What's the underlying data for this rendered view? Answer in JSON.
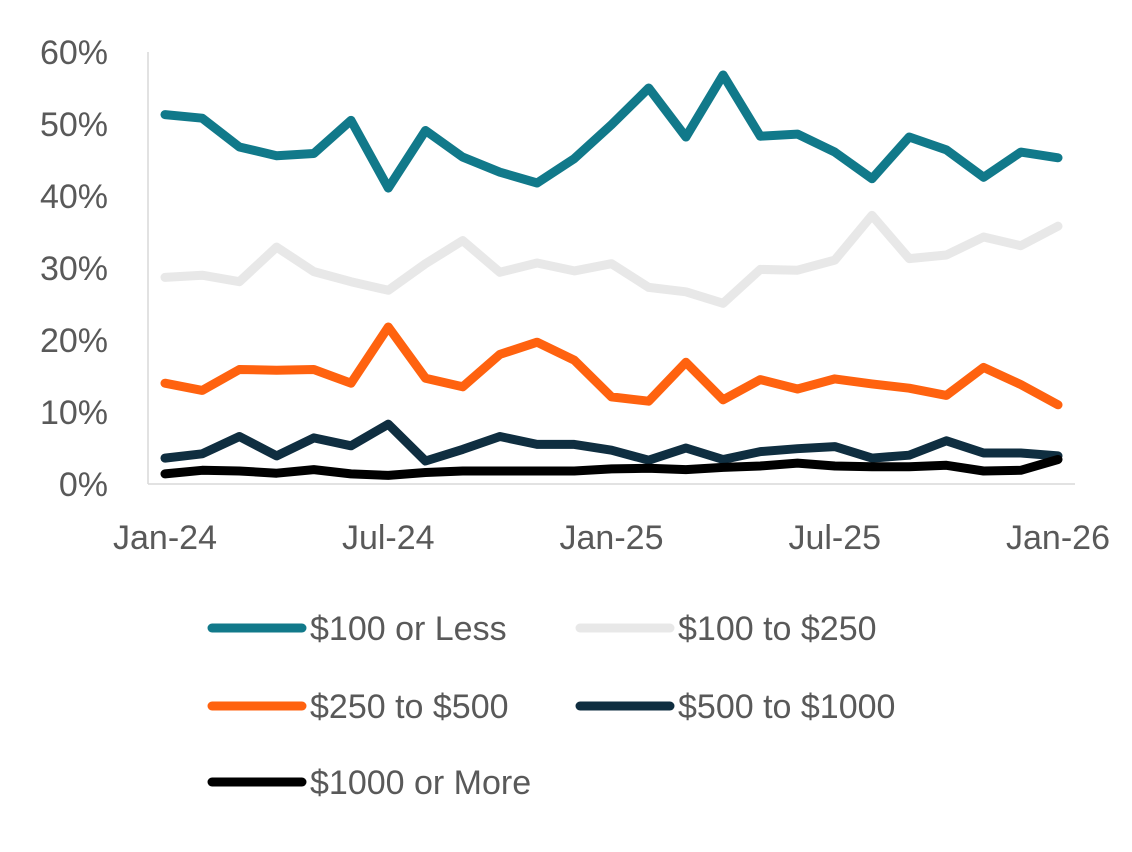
{
  "chart_data": {
    "type": "line",
    "title": "",
    "xlabel": "",
    "ylabel": "",
    "ylim": [
      0,
      60
    ],
    "yticks": [
      "0%",
      "10%",
      "20%",
      "30%",
      "40%",
      "50%",
      "60%"
    ],
    "x": [
      "Jan-24",
      "Feb-24",
      "Mar-24",
      "Apr-24",
      "May-24",
      "Jun-24",
      "Jul-24",
      "Aug-24",
      "Sep-24",
      "Oct-24",
      "Nov-24",
      "Dec-24",
      "Jan-25",
      "Feb-25",
      "Mar-25",
      "Apr-25",
      "May-25",
      "Jun-25",
      "Jul-25",
      "Aug-25",
      "Sep-25",
      "Oct-25",
      "Nov-25",
      "Dec-25",
      "Jan-26"
    ],
    "xtick_labels": [
      "Jan-24",
      "Jul-24",
      "Jan-25",
      "Jul-25",
      "Jan-26"
    ],
    "grid": false,
    "legend_position": "bottom",
    "series": [
      {
        "name": "$100 or Less",
        "color": "#11798a",
        "values": [
          51.3,
          50.8,
          46.8,
          45.6,
          45.9,
          50.5,
          41.1,
          49.1,
          45.4,
          43.3,
          41.8,
          45.2,
          49.9,
          55.0,
          48.2,
          56.8,
          48.3,
          48.6,
          46.1,
          42.4,
          48.2,
          46.4,
          42.6,
          46.1,
          45.3
        ]
      },
      {
        "name": "$100 to $250",
        "color": "#e8e8e8",
        "values": [
          28.7,
          29.0,
          28.1,
          32.9,
          29.5,
          28.1,
          26.9,
          30.6,
          33.8,
          29.4,
          30.7,
          29.6,
          30.6,
          27.3,
          26.7,
          25.1,
          29.8,
          29.7,
          31.1,
          37.3,
          31.3,
          31.8,
          34.3,
          33.1,
          35.8
        ]
      },
      {
        "name": "$250 to $500",
        "color": "#ff620f",
        "values": [
          14.0,
          13.0,
          15.9,
          15.8,
          15.9,
          14.0,
          21.8,
          14.7,
          13.5,
          18.0,
          19.7,
          17.2,
          12.1,
          11.5,
          16.9,
          11.7,
          14.5,
          13.2,
          14.6,
          13.9,
          13.3,
          12.3,
          16.2,
          13.8,
          11.0
        ]
      },
      {
        "name": "$500 to $1000",
        "color": "#0f2e40",
        "values": [
          3.6,
          4.2,
          6.6,
          3.9,
          6.4,
          5.3,
          8.3,
          3.2,
          4.8,
          6.6,
          5.5,
          5.5,
          4.7,
          3.3,
          5.0,
          3.4,
          4.5,
          4.9,
          5.2,
          3.6,
          4.0,
          6.0,
          4.3,
          4.3,
          3.9
        ]
      },
      {
        "name": "$1000 or More",
        "color": "#000000",
        "values": [
          1.4,
          1.9,
          1.8,
          1.5,
          2.0,
          1.4,
          1.2,
          1.6,
          1.8,
          1.8,
          1.8,
          1.8,
          2.1,
          2.2,
          2.0,
          2.3,
          2.5,
          2.9,
          2.5,
          2.4,
          2.4,
          2.6,
          1.8,
          1.9,
          3.4
        ]
      }
    ]
  }
}
